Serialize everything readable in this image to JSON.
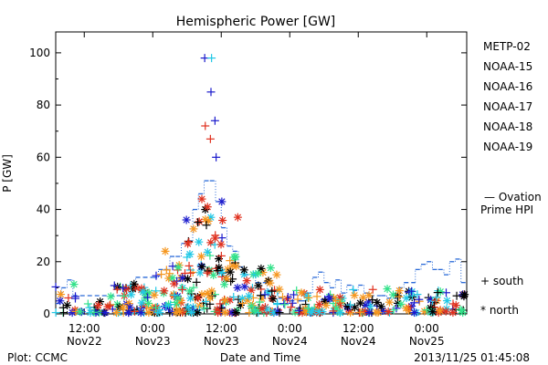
{
  "chart_data": {
    "type": "scatter",
    "title": "Hemispheric Power [GW]",
    "ylabel": "P [GW]",
    "xlabel": "Date and Time",
    "ylim": [
      0,
      108
    ],
    "x_unit": "hours since 2013-11-21 00:00 UT",
    "xlim": [
      31,
      103
    ],
    "y_ticks": [
      0,
      20,
      40,
      60,
      80,
      100
    ],
    "x_ticks": [
      {
        "x": 36,
        "lines": [
          "12:00",
          "Nov22"
        ]
      },
      {
        "x": 48,
        "lines": [
          "0:00",
          "Nov23"
        ]
      },
      {
        "x": 60,
        "lines": [
          "12:00",
          "Nov23"
        ]
      },
      {
        "x": 72,
        "lines": [
          "0:00",
          "Nov24"
        ]
      },
      {
        "x": 84,
        "lines": [
          "12:00",
          "Nov24"
        ]
      },
      {
        "x": 96,
        "lines": [
          "0:00",
          "Nov25"
        ]
      }
    ],
    "legend": [
      {
        "name": "METP-02",
        "color": "#000000"
      },
      {
        "name": "NOAA-15",
        "color": "#1a1acc"
      },
      {
        "name": "NOAA-16",
        "color": "#22c8e6"
      },
      {
        "name": "NOAA-17",
        "color": "#33e28a"
      },
      {
        "name": "NOAA-18",
        "color": "#f5961e"
      },
      {
        "name": "NOAA-19",
        "color": "#e0301e"
      }
    ],
    "ovation_label": [
      "— Ovation",
      "Prime HPI"
    ],
    "ovation_color": "#2a6ad8",
    "marker_key": {
      "south_symbol": "+",
      "south_label": "south",
      "north_symbol": "*",
      "north_label": "north"
    },
    "ovation_hpi": [
      [
        31,
        4
      ],
      [
        32,
        10
      ],
      [
        33,
        13
      ],
      [
        34,
        7
      ],
      [
        42,
        7
      ],
      [
        43,
        10
      ],
      [
        44,
        10
      ],
      [
        45,
        14
      ],
      [
        48,
        14
      ],
      [
        49,
        17
      ],
      [
        50,
        17
      ],
      [
        51,
        22
      ],
      [
        52,
        22
      ],
      [
        53,
        27
      ],
      [
        54,
        28
      ],
      [
        55,
        40
      ],
      [
        56,
        46
      ],
      [
        57,
        51
      ],
      [
        58,
        51
      ],
      [
        59,
        43
      ],
      [
        60,
        33
      ],
      [
        61,
        26
      ],
      [
        62,
        24
      ],
      [
        63,
        18
      ],
      [
        64,
        15
      ],
      [
        66,
        12
      ],
      [
        68,
        9
      ],
      [
        70,
        6
      ],
      [
        72,
        5
      ],
      [
        74,
        5
      ],
      [
        75,
        8
      ],
      [
        76,
        14
      ],
      [
        77,
        16
      ],
      [
        78,
        12
      ],
      [
        79,
        10
      ],
      [
        80,
        13
      ],
      [
        81,
        8
      ],
      [
        82,
        11
      ],
      [
        83,
        9
      ],
      [
        84,
        11
      ],
      [
        85,
        8
      ],
      [
        86,
        7
      ],
      [
        88,
        7
      ],
      [
        89,
        6
      ],
      [
        91,
        10
      ],
      [
        92,
        12
      ],
      [
        94,
        17
      ],
      [
        95,
        19
      ],
      [
        96,
        20
      ],
      [
        97,
        17
      ],
      [
        98,
        17
      ],
      [
        99,
        15
      ],
      [
        100,
        20
      ],
      [
        101,
        21
      ],
      [
        102,
        12
      ],
      [
        103,
        12
      ]
    ],
    "peaks": [
      {
        "series": "NOAA-15",
        "marker": "+",
        "x": 57.1,
        "y": 98
      },
      {
        "series": "NOAA-16",
        "marker": "+",
        "x": 58.3,
        "y": 98
      },
      {
        "series": "NOAA-15",
        "marker": "+",
        "x": 58.2,
        "y": 85
      },
      {
        "series": "NOAA-15",
        "marker": "+",
        "x": 58.9,
        "y": 74
      },
      {
        "series": "NOAA-19",
        "marker": "+",
        "x": 57.2,
        "y": 72
      },
      {
        "series": "NOAA-19",
        "marker": "+",
        "x": 58.1,
        "y": 67
      },
      {
        "series": "NOAA-15",
        "marker": "+",
        "x": 59.1,
        "y": 60
      },
      {
        "series": "NOAA-19",
        "marker": "*",
        "x": 56.6,
        "y": 44
      },
      {
        "series": "NOAA-15",
        "marker": "*",
        "x": 60.1,
        "y": 43
      },
      {
        "series": "METP-02",
        "marker": "*",
        "x": 57.2,
        "y": 40
      },
      {
        "series": "NOAA-19",
        "marker": "*",
        "x": 62.9,
        "y": 37
      },
      {
        "series": "NOAA-15",
        "marker": "*",
        "x": 53.9,
        "y": 36
      },
      {
        "series": "NOAA-19",
        "marker": "*",
        "x": 57.6,
        "y": 41
      },
      {
        "series": "METP-02",
        "marker": "+",
        "x": 57.4,
        "y": 34
      },
      {
        "series": "NOAA-18",
        "marker": "*",
        "x": 50.2,
        "y": 24
      },
      {
        "series": "NOAA-18",
        "marker": "*",
        "x": 56.5,
        "y": 22
      }
    ],
    "scatter_seed": 7,
    "scatter_bursts": [
      {
        "x0": 31,
        "x1": 48,
        "ymax": 12,
        "n": 90
      },
      {
        "x0": 48,
        "x1": 54,
        "ymax": 20,
        "n": 60
      },
      {
        "x0": 54,
        "x1": 63,
        "ymax": 38,
        "n": 110
      },
      {
        "x0": 63,
        "x1": 70,
        "ymax": 18,
        "n": 60
      },
      {
        "x0": 70,
        "x1": 103,
        "ymax": 10,
        "n": 170
      }
    ]
  },
  "footer": {
    "left": "Plot: CCMC",
    "center": "Date and Time",
    "right": "2013/11/25 01:45:08"
  }
}
